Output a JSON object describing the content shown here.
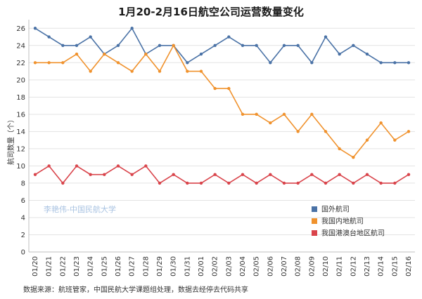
{
  "chart_data": {
    "type": "line",
    "title": "1月20-2月16日航空公司运营数量变化",
    "xlabel": "",
    "ylabel": "航司数量（个）",
    "ylim": [
      0,
      27
    ],
    "yticks": [
      0,
      2,
      4,
      6,
      8,
      10,
      12,
      14,
      16,
      18,
      20,
      22,
      24,
      26
    ],
    "grid": true,
    "legend_position": "bottom-right",
    "categories": [
      "01/20",
      "01/21",
      "01/22",
      "01/23",
      "01/24",
      "01/25",
      "01/26",
      "01/27",
      "01/28",
      "01/29",
      "01/30",
      "01/31",
      "02/01",
      "02/02",
      "02/03",
      "02/04",
      "02/05",
      "02/06",
      "02/07",
      "02/08",
      "02/09",
      "02/10",
      "02/11",
      "02/12",
      "02/13",
      "02/14",
      "02/15",
      "02/16"
    ],
    "series": [
      {
        "name": "国外航司",
        "color": "#4a72a6",
        "marker": "circle",
        "values": [
          26,
          25,
          24,
          24,
          25,
          23,
          24,
          26,
          23,
          24,
          24,
          22,
          23,
          24,
          25,
          24,
          24,
          22,
          24,
          24,
          22,
          25,
          23,
          24,
          23,
          22,
          22,
          22
        ]
      },
      {
        "name": "我国内地航司",
        "color": "#f0922d",
        "marker": "circle",
        "values": [
          22,
          22,
          22,
          23,
          21,
          23,
          22,
          21,
          23,
          21,
          24,
          21,
          21,
          19,
          19,
          16,
          16,
          15,
          16,
          14,
          16,
          14,
          12,
          11,
          13,
          15,
          13,
          14
        ]
      },
      {
        "name": "我国港澳台地区航司",
        "color": "#d9444b",
        "marker": "circle",
        "values": [
          9,
          10,
          8,
          10,
          9,
          9,
          10,
          9,
          10,
          8,
          9,
          8,
          8,
          9,
          8,
          9,
          8,
          9,
          8,
          8,
          9,
          8,
          9,
          8,
          9,
          8,
          8,
          9
        ]
      }
    ],
    "watermark": "李艳伟-中国民航大学",
    "source_note": "数据来源：航班管家，中国民航大学课题组处理，数据去经停去代码共享"
  }
}
